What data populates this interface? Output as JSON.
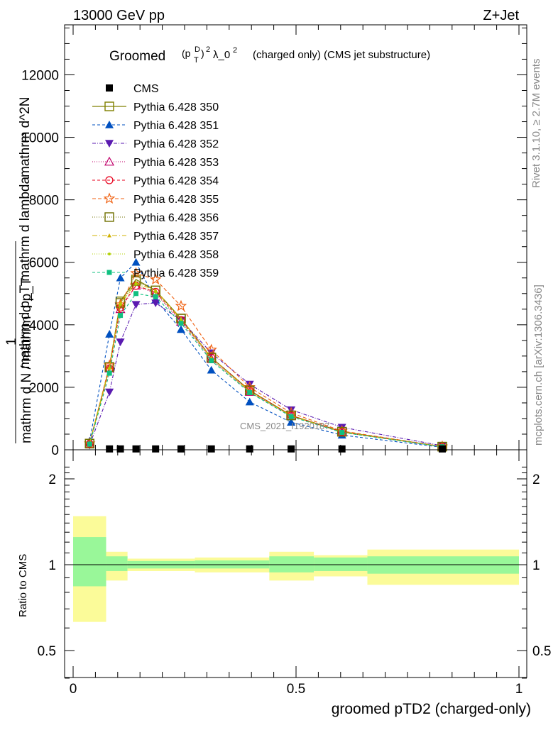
{
  "header": {
    "energy_label": "13000 GeV pp",
    "process_label": "Z+Jet"
  },
  "side_labels": {
    "rivet": "Rivet 3.1.10, ≥ 2.7M events",
    "mcplots": "mcplots.cern.ch [arXiv:1306.3436]"
  },
  "watermark": "CMS_2021_I1920187",
  "chart_data": [
    {
      "type": "line",
      "title": "Groomed (p_T^D)^2 λ_0^2  (charged only) (CMS jet substructure)",
      "ylabel_numerator": "1",
      "ylabel_denominator": "mathrm d N / mathrm d p_T",
      "ylabel_fraction_top": "mathrm d^2N",
      "ylabel_fraction_bottom": "mathrm d p_T mathrm d lambda",
      "ylim": [
        0,
        13600
      ],
      "xlim": [
        -0.015,
        1.015
      ],
      "yticks": [
        0,
        2000,
        4000,
        6000,
        8000,
        10000,
        12000
      ],
      "ytick_labels": [
        "0",
        "2000",
        "4000",
        "6000",
        "8000",
        "10000",
        "12000"
      ],
      "x": [
        0.037,
        0.0815,
        0.106,
        0.141,
        0.185,
        0.242,
        0.31,
        0.396,
        0.489,
        0.603,
        0.828
      ],
      "data_series": {
        "name": "CMS",
        "values": [
          5,
          5,
          5,
          5,
          5,
          5,
          5,
          5,
          5,
          5,
          5
        ]
      },
      "series": [
        {
          "name": "Pythia 6.428 350",
          "color": "#808000",
          "values": [
            200,
            2650,
            4750,
            5450,
            5100,
            4200,
            2950,
            1900,
            1100,
            580,
            100
          ]
        },
        {
          "name": "Pythia 6.428 351",
          "color": "#0050c0",
          "values": [
            280,
            3700,
            5500,
            6000,
            4800,
            3850,
            2550,
            1530,
            880,
            470,
            80
          ]
        },
        {
          "name": "Pythia 6.428 352",
          "color": "#5a1ab0",
          "values": [
            150,
            1850,
            3450,
            4650,
            4700,
            4150,
            3100,
            2100,
            1280,
            720,
            130
          ]
        },
        {
          "name": "Pythia 6.428 353",
          "color": "#c0006a",
          "values": [
            190,
            2600,
            4500,
            5250,
            5000,
            4100,
            2900,
            1850,
            1080,
            560,
            95
          ]
        },
        {
          "name": "Pythia 6.428 354",
          "color": "#e8001c",
          "values": [
            190,
            2600,
            4550,
            5250,
            5050,
            4150,
            2950,
            1900,
            1100,
            580,
            100
          ]
        },
        {
          "name": "Pythia 6.428 355",
          "color": "#f06010",
          "values": [
            200,
            2700,
            4650,
            5650,
            5450,
            4600,
            3200,
            2000,
            1180,
            600,
            105
          ]
        },
        {
          "name": "Pythia 6.428 356",
          "color": "#707000",
          "values": [
            195,
            2650,
            4700,
            5400,
            5100,
            4200,
            2950,
            1900,
            1100,
            575,
            100
          ]
        },
        {
          "name": "Pythia 6.428 357",
          "color": "#d0b000",
          "values": [
            195,
            2650,
            4700,
            5350,
            5100,
            4200,
            2950,
            1880,
            1090,
            570,
            100
          ]
        },
        {
          "name": "Pythia 6.428 358",
          "color": "#b0d000",
          "values": [
            190,
            2600,
            4650,
            5300,
            5050,
            4150,
            2900,
            1860,
            1080,
            565,
            98
          ]
        },
        {
          "name": "Pythia 6.428 359",
          "color": "#10c080",
          "values": [
            180,
            2450,
            4300,
            5000,
            4900,
            4050,
            2850,
            1830,
            1060,
            555,
            96
          ]
        }
      ]
    },
    {
      "type": "area",
      "ylabel": "Ratio to CMS",
      "xlabel": "groomed pTD2 (charged-only)",
      "ylim": [
        0.35,
        2.25
      ],
      "xlim": [
        -0.015,
        1.015
      ],
      "yticks": [
        0.5,
        1,
        2
      ],
      "ytick_labels": [
        "0.5",
        "1",
        "2"
      ],
      "xticks": [
        0,
        0.5,
        1
      ],
      "xtick_labels": [
        "0",
        "0.5",
        "1"
      ],
      "bins": [
        {
          "x_lo": 0.0,
          "x_hi": 0.074,
          "stat_lo": 0.84,
          "stat_hi": 1.25,
          "tot_lo": 0.63,
          "tot_hi": 1.48
        },
        {
          "x_lo": 0.074,
          "x_hi": 0.122,
          "stat_lo": 0.95,
          "stat_hi": 1.07,
          "tot_lo": 0.88,
          "tot_hi": 1.11
        },
        {
          "x_lo": 0.122,
          "x_hi": 0.273,
          "stat_lo": 0.97,
          "stat_hi": 1.03,
          "tot_lo": 0.95,
          "tot_hi": 1.05
        },
        {
          "x_lo": 0.273,
          "x_hi": 0.44,
          "stat_lo": 0.97,
          "stat_hi": 1.035,
          "tot_lo": 0.94,
          "tot_hi": 1.06
        },
        {
          "x_lo": 0.44,
          "x_hi": 0.54,
          "stat_lo": 0.94,
          "stat_hi": 1.07,
          "tot_lo": 0.88,
          "tot_hi": 1.11
        },
        {
          "x_lo": 0.54,
          "x_hi": 0.66,
          "stat_lo": 0.95,
          "stat_hi": 1.06,
          "tot_lo": 0.91,
          "tot_hi": 1.08
        },
        {
          "x_lo": 0.66,
          "x_hi": 1.0,
          "stat_lo": 0.93,
          "stat_hi": 1.07,
          "tot_lo": 0.85,
          "tot_hi": 1.13
        }
      ],
      "colors": {
        "stat": "#99f799",
        "total": "#fbfb99"
      }
    }
  ]
}
